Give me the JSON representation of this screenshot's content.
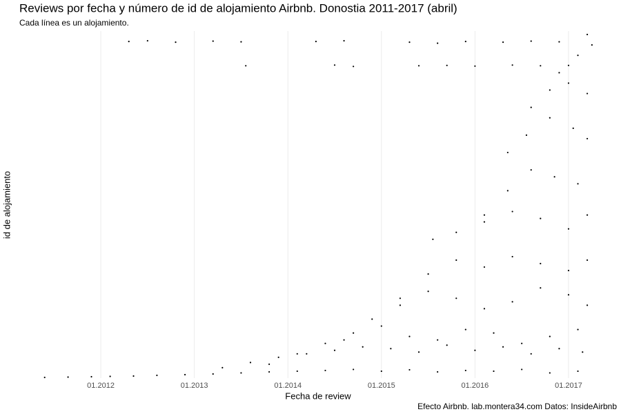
{
  "chart_data": {
    "type": "scatter",
    "title": "Reviews por fecha y número de id de alojamiento Airbnb. Donostia 2011-2017 (abril)",
    "subtitle": "Cada línea es un alojamiento.",
    "x_label": "Fecha de review",
    "y_label": "id de alojamiento",
    "caption": "Efecto Airbnb. lab.montera34.com Datos: InsideAirbnb",
    "xlim": [
      2011.38,
      2017.31
    ],
    "ylim": [
      0,
      1000
    ],
    "xticks": [
      {
        "value": 2012,
        "label": "01.2012"
      },
      {
        "value": 2013,
        "label": "01.2013"
      },
      {
        "value": 2014,
        "label": "01.2014"
      },
      {
        "value": 2015,
        "label": "01.2015"
      },
      {
        "value": 2016,
        "label": "01.2016"
      },
      {
        "value": 2017,
        "label": "01.2017"
      }
    ],
    "grid": true,
    "series": [
      {
        "color": "#000000",
        "x": [
          2011.4,
          2011.65,
          2011.9,
          2012.1,
          2012.35,
          2012.6,
          2012.9,
          2013.2,
          2013.5,
          2013.8,
          2014.1,
          2014.4,
          2014.7,
          2015.0,
          2015.3,
          2015.6,
          2015.9,
          2016.2,
          2016.5,
          2016.8,
          2017.1,
          2012.3,
          2012.5,
          2012.8,
          2013.2,
          2013.5,
          2014.3,
          2014.6,
          2015.3,
          2015.6,
          2015.9,
          2016.3,
          2016.6,
          2016.9,
          2017.2,
          2013.55,
          2014.5,
          2014.7,
          2015.4,
          2015.7,
          2016.0,
          2016.4,
          2016.7,
          2017.0,
          2013.3,
          2013.6,
          2013.9,
          2014.2,
          2014.5,
          2014.8,
          2015.1,
          2015.4,
          2015.7,
          2016.0,
          2016.3,
          2016.6,
          2016.9,
          2017.15,
          2013.8,
          2014.1,
          2014.4,
          2014.7,
          2015.0,
          2015.3,
          2015.6,
          2015.9,
          2016.2,
          2016.5,
          2016.8,
          2017.1,
          2014.6,
          2014.9,
          2015.2,
          2015.5,
          2015.8,
          2016.1,
          2016.4,
          2016.7,
          2017.0,
          2017.2,
          2015.2,
          2015.5,
          2015.8,
          2016.1,
          2016.4,
          2016.7,
          2017.0,
          2017.2,
          2015.55,
          2015.8,
          2016.1,
          2016.4,
          2016.7,
          2017.0,
          2017.2,
          2016.1,
          2016.35,
          2016.6,
          2016.85,
          2017.1,
          2016.35,
          2016.55,
          2016.8,
          2017.05,
          2017.2,
          2016.6,
          2016.8,
          2017.0,
          2017.2,
          2016.9,
          2017.1,
          2017.25
        ],
        "y": [
          2,
          3,
          4,
          5,
          6,
          8,
          10,
          12,
          15,
          18,
          20,
          22,
          25,
          20,
          24,
          18,
          22,
          20,
          25,
          15,
          20,
          970,
          972,
          968,
          971,
          969,
          970,
          972,
          968,
          965,
          970,
          968,
          971,
          969,
          990,
          900,
          902,
          898,
          900,
          901,
          899,
          902,
          900,
          901,
          30,
          45,
          60,
          70,
          80,
          90,
          85,
          75,
          95,
          80,
          90,
          70,
          85,
          75,
          40,
          70,
          100,
          130,
          150,
          120,
          110,
          140,
          130,
          100,
          120,
          140,
          110,
          170,
          210,
          250,
          230,
          200,
          220,
          260,
          240,
          210,
          230,
          300,
          340,
          320,
          350,
          330,
          310,
          340,
          400,
          420,
          450,
          480,
          460,
          430,
          470,
          470,
          540,
          600,
          580,
          560,
          650,
          700,
          750,
          720,
          690,
          780,
          830,
          850,
          820,
          880,
          930,
          960
        ]
      }
    ]
  }
}
